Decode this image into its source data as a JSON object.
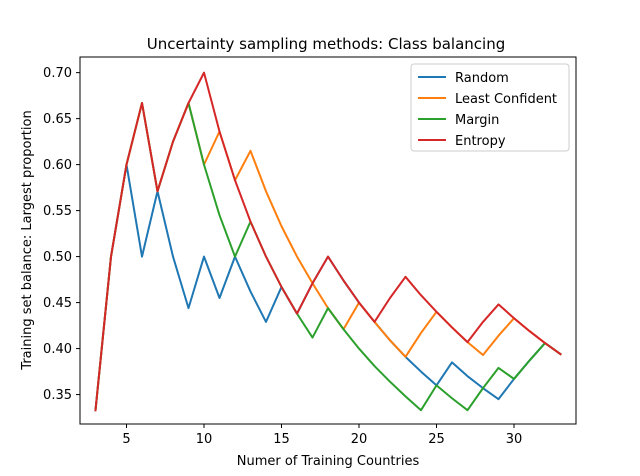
{
  "chart_data": {
    "type": "line",
    "title": "Uncertainty sampling methods: Class balancing",
    "xlabel": "Numer of Training Countries",
    "ylabel": "Training set balance: Largest proportion",
    "xlim": [
      2.0,
      34.0
    ],
    "ylim": [
      0.318,
      0.717
    ],
    "xticks": [
      5,
      10,
      15,
      20,
      25,
      30
    ],
    "yticks": [
      0.35,
      0.4,
      0.45,
      0.5,
      0.55,
      0.6,
      0.65,
      0.7
    ],
    "ytick_labels": [
      "0.35",
      "0.40",
      "0.45",
      "0.50",
      "0.55",
      "0.60",
      "0.65",
      "0.70"
    ],
    "xtick_labels": [
      "5",
      "10",
      "15",
      "20",
      "25",
      "30"
    ],
    "legend_position": "top-right",
    "grid": false,
    "series": [
      {
        "name": "Random",
        "color": "#1f77b4",
        "x": [
          3,
          4,
          5,
          6,
          7,
          8,
          9,
          10,
          11,
          12,
          13,
          14,
          15,
          16,
          17,
          18,
          19,
          20,
          21,
          22,
          23,
          24,
          25,
          26,
          27,
          28,
          29,
          30,
          31,
          32,
          33
        ],
        "y": [
          0.333,
          0.5,
          0.6,
          0.5,
          0.571,
          0.5,
          0.444,
          0.5,
          0.455,
          0.5,
          0.462,
          0.429,
          0.467,
          0.438,
          0.471,
          0.5,
          0.474,
          0.45,
          0.429,
          0.409,
          0.391,
          0.375,
          0.36,
          0.385,
          0.37,
          0.357,
          0.345,
          0.367,
          0.387,
          0.406,
          0.394
        ]
      },
      {
        "name": "Least Confident",
        "color": "#ff7f0e",
        "x": [
          3,
          4,
          5,
          6,
          7,
          8,
          9,
          10,
          11,
          12,
          13,
          14,
          15,
          16,
          17,
          18,
          19,
          20,
          21,
          22,
          23,
          24,
          25,
          26,
          27,
          28,
          29,
          30,
          31,
          32,
          33
        ],
        "y": [
          0.333,
          0.5,
          0.6,
          0.667,
          0.571,
          0.625,
          0.667,
          0.6,
          0.636,
          0.583,
          0.615,
          0.571,
          0.533,
          0.5,
          0.471,
          0.444,
          0.421,
          0.45,
          0.429,
          0.409,
          0.391,
          0.417,
          0.44,
          0.423,
          0.407,
          0.393,
          0.414,
          0.433,
          0.419,
          0.406,
          0.394
        ]
      },
      {
        "name": "Margin",
        "color": "#2ca02c",
        "x": [
          3,
          4,
          5,
          6,
          7,
          8,
          9,
          10,
          11,
          12,
          13,
          14,
          15,
          16,
          17,
          18,
          19,
          20,
          21,
          22,
          23,
          24,
          25,
          26,
          27,
          28,
          29,
          30,
          31,
          32,
          33
        ],
        "y": [
          0.333,
          0.5,
          0.6,
          0.667,
          0.571,
          0.625,
          0.667,
          0.6,
          0.545,
          0.5,
          0.538,
          0.5,
          0.467,
          0.438,
          0.412,
          0.444,
          0.421,
          0.4,
          0.381,
          0.364,
          0.348,
          0.333,
          0.36,
          0.346,
          0.333,
          0.357,
          0.379,
          0.367,
          0.387,
          0.406,
          0.394
        ]
      },
      {
        "name": "Entropy",
        "color": "#d62728",
        "x": [
          3,
          4,
          5,
          6,
          7,
          8,
          9,
          10,
          11,
          12,
          13,
          14,
          15,
          16,
          17,
          18,
          19,
          20,
          21,
          22,
          23,
          24,
          25,
          26,
          27,
          28,
          29,
          30,
          31,
          32,
          33
        ],
        "y": [
          0.333,
          0.5,
          0.6,
          0.667,
          0.571,
          0.625,
          0.667,
          0.7,
          0.636,
          0.583,
          0.538,
          0.5,
          0.467,
          0.438,
          0.471,
          0.5,
          0.474,
          0.45,
          0.429,
          0.455,
          0.478,
          0.458,
          0.44,
          0.423,
          0.407,
          0.429,
          0.448,
          0.433,
          0.419,
          0.406,
          0.394
        ]
      }
    ]
  }
}
